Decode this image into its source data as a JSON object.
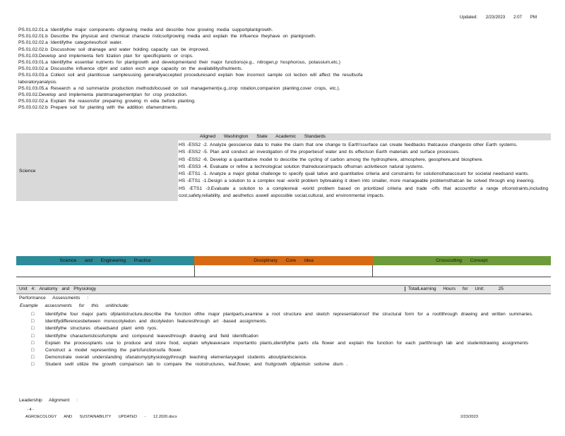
{
  "header": {
    "updated_text": "Updated:    2/23/2023    2:07 PM"
  },
  "standards": [
    "PS.01.02.01.a Identifythe   major components  ofgrowing  media and describe  how growing media  supportplantgrowth.",
    "PS.01.02.01.b Describe   the physical and chemical characte risticsofgrowing   media and explain the influence  theyhave  on plantgrowth.",
    "PS.01.02.02.a Identifythe   categoriesofsoil   water.",
    "PS.01.02.02.b Discusshow   soil drainage  and water holding capacity can be improved.",
    "PS.01.03.Develop  and implementa  ferti lization plan for specificplants  or crops.",
    "PS.01.03.01.a Identifythe   essential nutrients for plantgrowth  and developmentand  their major functions(e.g.,  nitrogen,p  hosphorous,  potassium,etc.)",
    "PS.01.03.02.a Discussthe  influence  ofpH and cation exch ange capacity  on the availabilityofnutrients.",
    "PS.01.03.03.a Collect  soil and planttissue  samplesusing  generallyaccepted  proceduresand  explain how incorrect  sample col lection will affect the resultsofa",
    "laboratoryanalysis.",
    "PS.01.03.05.a Research   a nd summarize  production  methodsfocused  on soil management(e.g.,crop  rotation,companion  planting,cover  crops, etc.).",
    "PS.03.02.Develop  and implementa  plantmanagementplan  for crop production.",
    "PS.03.02.02.a Explain   the reasonsfor  preparing growing m edia before planting.",
    "PS.03.02.02.b Prepare   soil for planting with the addition  ofamendments."
  ],
  "aligned": {
    "header": "Aligned   Washington   State  Academic   Standards",
    "subject": "Science",
    "items": [
      "HS -ESS2  -2. Analyze geoscience  data to make the claim that one change to Earth'ssurface  can create feedbacks thatcause  changesto other Earth systems.",
      "HS -ESS2  -5. Plan and conduct  an investigation  of the propertiesof  water and its effectson  Earth materials and surface processes.",
      "HS -ESS2  -6. Develop  a quantitative  model to describe  the cycling of carbon among the hydrosphere,  atmosphere, geosphere,and  biosphere.",
      "HS -ESS3  -4. Evaluate  or refine a technological  solution  thatreducesimpacts  ofhuman activitieson  natural systems.",
      "HS -ETS1  -1. Analyze  a major global challenge  to specify quali tative and quantitative  criteria and constraints  for solutionsthataccount  for societal needsand  wants.",
      "HS -ETS1  -1.Design  a solution  to a complex real -world problem  bybreaking  it down into smaller,  more manageable problemsthatcan  be solved through eng ineering.",
      "HS -ETS1  -3.Evaluate  a solution  to a complexreal  -world problem  based on prioritized  criteria and trade -offs that accountfor  a range ofconstraints,including  cost,safety,reliability,  and aesthetics  aswell aspossible  social,cultural, and environmental  impacts."
    ]
  },
  "dimensions": {
    "practice": "Science and Engineering Practice",
    "core_idea": "Disciplinary Core Idea",
    "crosscutting": "Crosscutting Concept",
    "colors": {
      "practice": "#2e8b9a",
      "core_idea": "#d86a14",
      "crosscutting": "#6e9b3a"
    }
  },
  "unit": {
    "title": "Unit 4: Anatomy and Physiology",
    "hours_label": "TotalLearning  Hours for Unit:",
    "hours_value": "25"
  },
  "performance": {
    "label": "Performance  Assessments  :",
    "example": "Example  assessments  for this unitinclude:",
    "bullet_glyph": "□",
    "bullets": [
      "Identifythe  four major parts ofplantstructure,describe  the function  ofthe major plantparts,examine  a root  structure and sketch representationsof  the structural form for a roottthrough  drawing and written  summaries.",
      "Identifydifferencesbetween   monocotyledon  and dicotyledon  featuresthrough  art -based assignments.",
      "Identifythe   structures  ofseedsand  plant emb ryos.",
      "Identifythe   characteristicsofsimple  and compound  leavesthrough  drawing and field identification",
      "Explain the processplants  use to produce and store food, explain whyleavesare  importantto  plants,identifythe  parts ofa flower and explain the function for each partthrough  lab and studentdrawing  assignments",
      "Construct  a model representing  the partsfunctionsofa  flower.",
      "Demonstrate  overall understanding  ofanatomy/physiologythrough  teaching elementaryaged  students aboutplantscience.",
      "Student swill utilize the growth comparison  lab to compare the rootstructures,  leaf,flower,  and fruitgrowth  ofplantsin  soilsme  dium ."
    ]
  },
  "leadership": {
    "label": "Leadership  Alignment  :"
  },
  "footer": {
    "page": "- 4 -",
    "doc": "AGROECOLOGY   AND SUSTAINABILITY   UPDATED   - 12.2020.docx",
    "date": "2/23/2023"
  }
}
